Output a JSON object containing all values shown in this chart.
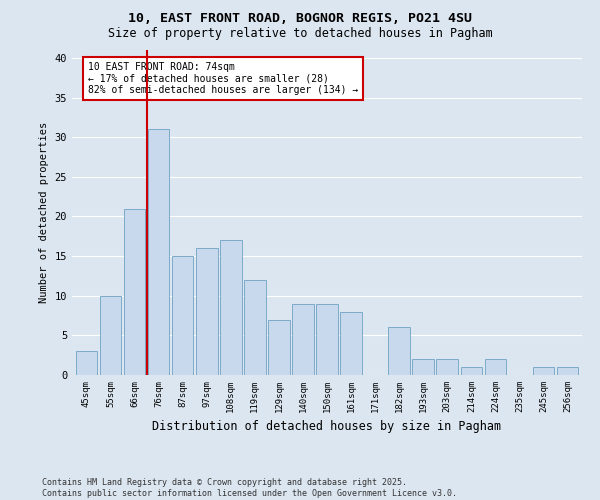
{
  "title1": "10, EAST FRONT ROAD, BOGNOR REGIS, PO21 4SU",
  "title2": "Size of property relative to detached houses in Pagham",
  "xlabel": "Distribution of detached houses by size in Pagham",
  "ylabel": "Number of detached properties",
  "categories": [
    "45sqm",
    "55sqm",
    "66sqm",
    "76sqm",
    "87sqm",
    "97sqm",
    "108sqm",
    "119sqm",
    "129sqm",
    "140sqm",
    "150sqm",
    "161sqm",
    "171sqm",
    "182sqm",
    "193sqm",
    "203sqm",
    "214sqm",
    "224sqm",
    "235sqm",
    "245sqm",
    "256sqm"
  ],
  "values": [
    3,
    10,
    21,
    31,
    15,
    16,
    17,
    12,
    7,
    9,
    9,
    8,
    0,
    6,
    2,
    2,
    1,
    2,
    0,
    1,
    1
  ],
  "bar_color": "#c9d9ed",
  "bar_edge_color": "#7baac8",
  "vline_x": 2.5,
  "vline_color": "#cc0000",
  "annotation_text": "10 EAST FRONT ROAD: 74sqm\n← 17% of detached houses are smaller (28)\n82% of semi-detached houses are larger (134) →",
  "annotation_box_color": "#ffffff",
  "annotation_box_edge": "#cc0000",
  "ylim": [
    0,
    41
  ],
  "yticks": [
    0,
    5,
    10,
    15,
    20,
    25,
    30,
    35,
    40
  ],
  "background_color": "#dce6f0",
  "grid_color": "#ffffff",
  "footer": "Contains HM Land Registry data © Crown copyright and database right 2025.\nContains public sector information licensed under the Open Government Licence v3.0."
}
